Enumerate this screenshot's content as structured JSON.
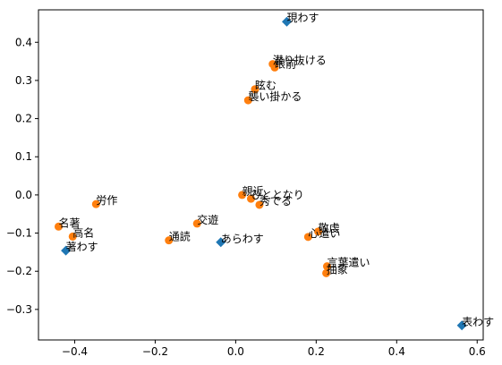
{
  "chart_data": {
    "type": "scatter",
    "title": "",
    "xlabel": "",
    "ylabel": "",
    "xlim": [
      -0.49,
      0.615
    ],
    "ylim": [
      -0.38,
      0.485
    ],
    "xticks": [
      -0.4,
      -0.2,
      0.0,
      0.2,
      0.4,
      0.6
    ],
    "xtick_labels": [
      "−0.4",
      "−0.2",
      "0.0",
      "0.2",
      "0.4",
      "0.6"
    ],
    "yticks": [
      -0.3,
      -0.2,
      -0.1,
      0.0,
      0.1,
      0.2,
      0.3,
      0.4
    ],
    "ytick_labels": [
      "−0.3",
      "−0.2",
      "−0.1",
      "0.0",
      "0.1",
      "0.2",
      "0.3",
      "0.4"
    ],
    "grid": false,
    "series": [
      {
        "marker": "diamond",
        "color": "#1f77b4",
        "points": [
          {
            "label": "現わす",
            "x": 0.127,
            "y": 0.454
          },
          {
            "label": "あらわす",
            "x": -0.037,
            "y": -0.124
          },
          {
            "label": "著わす",
            "x": -0.422,
            "y": -0.146
          },
          {
            "label": "表わす",
            "x": 0.562,
            "y": -0.342
          }
        ]
      },
      {
        "marker": "circle",
        "color": "#ff7f0e",
        "points": [
          {
            "label": "潜り抜ける",
            "x": 0.092,
            "y": 0.343
          },
          {
            "label": "眼前",
            "x": 0.097,
            "y": 0.334
          },
          {
            "label": "眩む",
            "x": 0.048,
            "y": 0.277
          },
          {
            "label": "襲い掛かる",
            "x": 0.031,
            "y": 0.248
          },
          {
            "label": "親近",
            "x": 0.016,
            "y": 0.0
          },
          {
            "label": "ひととなり",
            "x": 0.038,
            "y": -0.01
          },
          {
            "label": "秀でる",
            "x": 0.059,
            "y": -0.026
          },
          {
            "label": "労作",
            "x": -0.347,
            "y": -0.024
          },
          {
            "label": "名著",
            "x": -0.44,
            "y": -0.083
          },
          {
            "label": "高名",
            "x": -0.405,
            "y": -0.109
          },
          {
            "label": "交遊",
            "x": -0.096,
            "y": -0.075
          },
          {
            "label": "通読",
            "x": -0.166,
            "y": -0.119
          },
          {
            "label": "敬虔",
            "x": 0.205,
            "y": -0.096
          },
          {
            "label": "心遣い",
            "x": 0.18,
            "y": -0.11
          },
          {
            "label": "言葉遣い",
            "x": 0.227,
            "y": -0.187
          },
          {
            "label": "抽象",
            "x": 0.225,
            "y": -0.205
          }
        ]
      }
    ]
  }
}
